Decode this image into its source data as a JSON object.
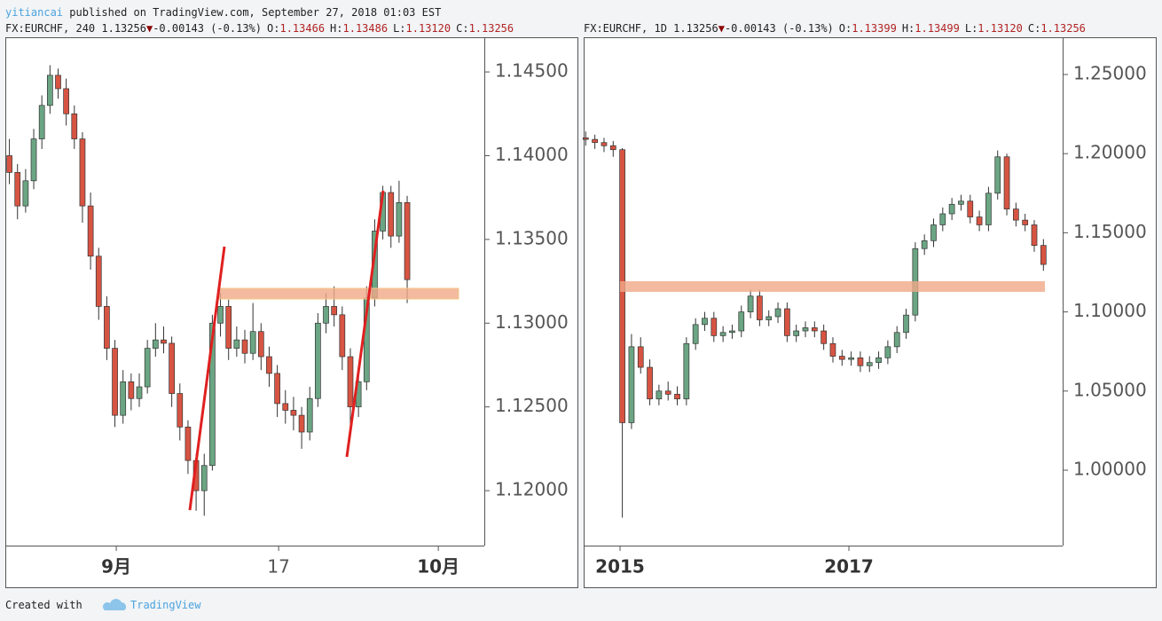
{
  "header": {
    "author": "yitiancai",
    "published": "published on TradingView.com, September 27, 2018 01:03 EST"
  },
  "footer": {
    "created": "Created with",
    "brand": "TradingView"
  },
  "chart_data": [
    {
      "type": "candlestick",
      "symbol_line": "FX:EURCHF, 240 1.13256",
      "arrow": "▼",
      "change": "-0.00143 (-0.13%)",
      "ohlc_labels": [
        "O:",
        "H:",
        "L:",
        "C:"
      ],
      "ohlc_values": [
        "1.13466",
        "1.13486",
        "1.13120",
        "1.13256"
      ],
      "up_color": "#6ba583",
      "down_color": "#d75442",
      "xlim": [
        0,
        177
      ],
      "xticks": [
        {
          "value": 41,
          "label": "9月"
        },
        {
          "value": 101,
          "label": "17"
        },
        {
          "value": 160,
          "label": "10月"
        }
      ],
      "ylim": [
        1.11672,
        1.14707
      ],
      "yticks": [
        {
          "value": 1.12,
          "label": "1.12000"
        },
        {
          "value": 1.125,
          "label": "1.12500"
        },
        {
          "value": 1.13,
          "label": "1.13000"
        },
        {
          "value": 1.135,
          "label": "1.13500"
        },
        {
          "value": 1.14,
          "label": "1.14000"
        },
        {
          "value": 1.145,
          "label": "1.14500"
        }
      ],
      "x": [
        1.5,
        4.5,
        7.5,
        10.5,
        13.5,
        16.5,
        19.5,
        22.5,
        25.5,
        28.5,
        31.5,
        34.5,
        37.5,
        40.5,
        43.5,
        46.5,
        49.5,
        52.5,
        55.5,
        58.5,
        61.5,
        64.5,
        67.5,
        70.5,
        73.5,
        76.5,
        79.5,
        82.5,
        85.5,
        88.5,
        91.5,
        94.5,
        97.5,
        100.5,
        103.5,
        106.5,
        109.5,
        112.5,
        115.5,
        118.5,
        121.5,
        124.5,
        127.5,
        130.5,
        133.5,
        136.5,
        139.5,
        142.5,
        145.5,
        148.5
      ],
      "open": [
        1.14,
        1.139,
        1.137,
        1.1385,
        1.141,
        1.143,
        1.1448,
        1.144,
        1.1425,
        1.141,
        1.137,
        1.134,
        1.131,
        1.1285,
        1.1245,
        1.1265,
        1.1255,
        1.1262,
        1.1285,
        1.129,
        1.1288,
        1.1258,
        1.1238,
        1.1218,
        1.12,
        1.1215,
        1.13,
        1.131,
        1.1285,
        1.129,
        1.1282,
        1.1295,
        1.128,
        1.127,
        1.1252,
        1.1248,
        1.1245,
        1.1235,
        1.1255,
        1.13,
        1.131,
        1.1305,
        1.128,
        1.125,
        1.1265,
        1.1315,
        1.1355,
        1.1378,
        1.1352,
        1.1372
      ],
      "high": [
        1.141,
        1.1395,
        1.1392,
        1.1416,
        1.1436,
        1.1454,
        1.1452,
        1.1446,
        1.143,
        1.1414,
        1.1378,
        1.1345,
        1.1316,
        1.129,
        1.1272,
        1.127,
        1.127,
        1.129,
        1.13,
        1.1298,
        1.1292,
        1.1264,
        1.1242,
        1.1222,
        1.1222,
        1.1305,
        1.1318,
        1.1314,
        1.1298,
        1.1296,
        1.1312,
        1.13,
        1.1286,
        1.1275,
        1.126,
        1.1256,
        1.125,
        1.1262,
        1.1306,
        1.1318,
        1.1322,
        1.131,
        1.1285,
        1.1272,
        1.1322,
        1.1362,
        1.1382,
        1.1382,
        1.1385,
        1.1376
      ],
      "low": [
        1.1383,
        1.1362,
        1.1366,
        1.138,
        1.1404,
        1.1425,
        1.1434,
        1.1418,
        1.1404,
        1.136,
        1.1332,
        1.1302,
        1.1278,
        1.1238,
        1.124,
        1.1248,
        1.125,
        1.1258,
        1.128,
        1.1282,
        1.125,
        1.123,
        1.121,
        1.1188,
        1.1185,
        1.1212,
        1.1292,
        1.1278,
        1.128,
        1.1276,
        1.1278,
        1.1272,
        1.1262,
        1.1244,
        1.124,
        1.1236,
        1.1225,
        1.123,
        1.125,
        1.1294,
        1.1298,
        1.1272,
        1.124,
        1.1244,
        1.126,
        1.131,
        1.135,
        1.1345,
        1.1348,
        1.1312
      ],
      "close": [
        1.139,
        1.137,
        1.1385,
        1.141,
        1.143,
        1.1448,
        1.144,
        1.1425,
        1.141,
        1.137,
        1.134,
        1.131,
        1.1285,
        1.1245,
        1.1265,
        1.1255,
        1.1262,
        1.1285,
        1.129,
        1.1288,
        1.1258,
        1.1238,
        1.1218,
        1.12,
        1.1215,
        1.13,
        1.131,
        1.1285,
        1.129,
        1.1282,
        1.1295,
        1.128,
        1.127,
        1.1252,
        1.1248,
        1.1245,
        1.1235,
        1.1255,
        1.13,
        1.131,
        1.1305,
        1.128,
        1.125,
        1.1265,
        1.1315,
        1.1355,
        1.1378,
        1.1352,
        1.1372,
        1.1326
      ]
    },
    {
      "type": "candlestick",
      "symbol_line": "FX:EURCHF, 1D 1.13256",
      "arrow": "▼",
      "change": "-0.00143 (-0.13%)",
      "ohlc_labels": [
        "O:",
        "H:",
        "L:",
        "C:"
      ],
      "ohlc_values": [
        "1.13399",
        "1.13499",
        "1.13120",
        "1.13256"
      ],
      "up_color": "#6ba583",
      "down_color": "#d75442",
      "xlim": [
        2014.682,
        2018.868
      ],
      "xticks": [
        2015,
        2017
      ],
      "ylim": [
        0.95235,
        1.27354
      ],
      "yticks": [
        {
          "value": 1.0,
          "label": "1.00000"
        },
        {
          "value": 1.05,
          "label": "1.05000"
        },
        {
          "value": 1.1,
          "label": "1.10000"
        },
        {
          "value": 1.15,
          "label": "1.15000"
        },
        {
          "value": 1.2,
          "label": "1.20000"
        },
        {
          "value": 1.25,
          "label": "1.25000"
        }
      ],
      "x": [
        2014.7,
        2014.78,
        2014.86,
        2014.94,
        2015.02,
        2015.1,
        2015.18,
        2015.26,
        2015.34,
        2015.42,
        2015.5,
        2015.58,
        2015.66,
        2015.74,
        2015.82,
        2015.9,
        2015.98,
        2016.06,
        2016.14,
        2016.22,
        2016.3,
        2016.38,
        2016.46,
        2016.54,
        2016.62,
        2016.7,
        2016.78,
        2016.86,
        2016.94,
        2017.02,
        2017.1,
        2017.18,
        2017.26,
        2017.34,
        2017.42,
        2017.5,
        2017.58,
        2017.66,
        2017.74,
        2017.82,
        2017.9,
        2017.98,
        2018.06,
        2018.14,
        2018.22,
        2018.3,
        2018.38,
        2018.46,
        2018.54,
        2018.62,
        2018.7
      ],
      "open": [
        1.21,
        1.209,
        1.207,
        1.205,
        1.2025,
        1.03,
        1.078,
        1.065,
        1.045,
        1.05,
        1.048,
        1.045,
        1.08,
        1.092,
        1.096,
        1.085,
        1.087,
        1.088,
        1.1,
        1.11,
        1.095,
        1.097,
        1.102,
        1.085,
        1.088,
        1.09,
        1.088,
        1.08,
        1.072,
        1.07,
        1.071,
        1.066,
        1.068,
        1.071,
        1.078,
        1.087,
        1.098,
        1.14,
        1.145,
        1.155,
        1.162,
        1.168,
        1.17,
        1.16,
        1.155,
        1.175,
        1.198,
        1.165,
        1.158,
        1.155,
        1.142
      ],
      "high": [
        1.214,
        1.212,
        1.21,
        1.208,
        1.2035,
        1.086,
        1.084,
        1.07,
        1.054,
        1.056,
        1.053,
        1.084,
        1.096,
        1.1,
        1.1,
        1.091,
        1.092,
        1.104,
        1.114,
        1.114,
        1.101,
        1.106,
        1.106,
        1.092,
        1.094,
        1.094,
        1.092,
        1.084,
        1.076,
        1.075,
        1.075,
        1.072,
        1.075,
        1.082,
        1.091,
        1.102,
        1.144,
        1.149,
        1.159,
        1.166,
        1.172,
        1.174,
        1.174,
        1.164,
        1.179,
        1.202,
        1.2,
        1.169,
        1.162,
        1.158,
        1.146
      ],
      "low": [
        1.205,
        1.203,
        1.201,
        1.198,
        0.97,
        1.026,
        1.061,
        1.041,
        1.041,
        1.044,
        1.041,
        1.041,
        1.076,
        1.088,
        1.081,
        1.081,
        1.083,
        1.084,
        1.096,
        1.091,
        1.091,
        1.093,
        1.081,
        1.081,
        1.084,
        1.084,
        1.076,
        1.068,
        1.066,
        1.066,
        1.062,
        1.062,
        1.064,
        1.067,
        1.074,
        1.083,
        1.094,
        1.136,
        1.141,
        1.151,
        1.158,
        1.164,
        1.156,
        1.151,
        1.151,
        1.171,
        1.161,
        1.154,
        1.151,
        1.138,
        1.126
      ],
      "close": [
        1.209,
        1.207,
        1.205,
        1.2025,
        1.03,
        1.078,
        1.065,
        1.045,
        1.05,
        1.048,
        1.045,
        1.08,
        1.092,
        1.096,
        1.085,
        1.087,
        1.088,
        1.1,
        1.11,
        1.095,
        1.097,
        1.102,
        1.085,
        1.088,
        1.09,
        1.088,
        1.08,
        1.072,
        1.07,
        1.071,
        1.066,
        1.068,
        1.071,
        1.078,
        1.087,
        1.098,
        1.14,
        1.145,
        1.155,
        1.162,
        1.168,
        1.17,
        1.16,
        1.155,
        1.175,
        1.198,
        1.165,
        1.158,
        1.155,
        1.142,
        1.13
      ]
    }
  ]
}
